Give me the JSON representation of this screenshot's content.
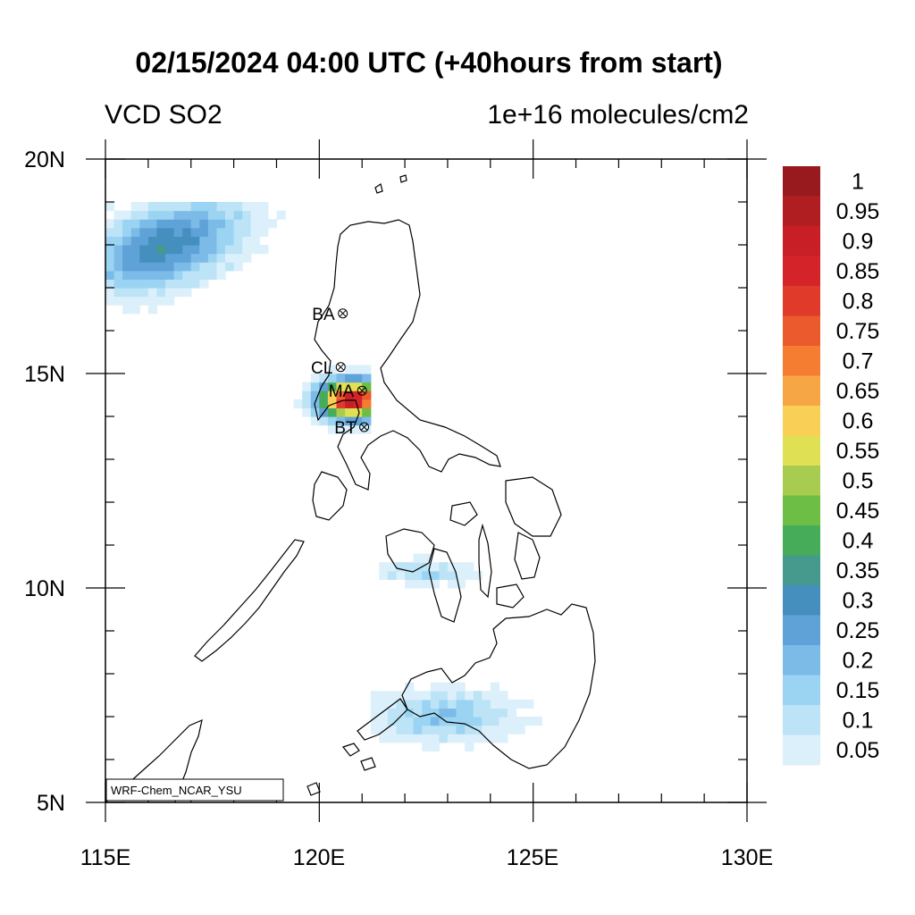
{
  "header": {
    "title": "02/15/2024 04:00 UTC (+40hours from start)",
    "left_subtitle": "VCD SO2",
    "right_subtitle": "1e+16 molecules/cm2"
  },
  "axes": {
    "x_ticks": [
      "115E",
      "120E",
      "125E",
      "130E"
    ],
    "y_ticks": [
      "20N",
      "15N",
      "10N",
      "5N"
    ],
    "lon_range": [
      115,
      130
    ],
    "lat_range": [
      5,
      20
    ]
  },
  "sites": [
    {
      "code": "BA",
      "lon": 120.55,
      "lat": 16.4
    },
    {
      "code": "CL",
      "lon": 120.5,
      "lat": 15.15
    },
    {
      "code": "MA",
      "lon": 121.0,
      "lat": 14.6
    },
    {
      "code": "BT",
      "lon": 121.05,
      "lat": 13.75
    }
  ],
  "credit": "WRF-Chem_NCAR_YSU",
  "colorbar": {
    "labels": [
      "1",
      "0.95",
      "0.9",
      "0.85",
      "0.8",
      "0.75",
      "0.7",
      "0.65",
      "0.6",
      "0.55",
      "0.5",
      "0.45",
      "0.4",
      "0.35",
      "0.3",
      "0.25",
      "0.2",
      "0.15",
      "0.1",
      "0.05"
    ],
    "colors": [
      "#981a1e",
      "#b11e22",
      "#c81f26",
      "#d42429",
      "#e03a2b",
      "#ea5a2c",
      "#f47d32",
      "#f7a645",
      "#f9d055",
      "#dfe054",
      "#a8cc4f",
      "#6cbe45",
      "#46ac5a",
      "#45998d",
      "#448fbd",
      "#5fa2d8",
      "#7cbbe8",
      "#9ad4f2",
      "#bce3f6",
      "#dcf0fb"
    ]
  },
  "chart_data": {
    "type": "heatmap",
    "variable": "VCD SO2",
    "units": "1e+16 molecules/cm2",
    "levels": [
      0.05,
      0.1,
      0.15,
      0.2,
      0.25,
      0.3,
      0.35,
      0.4,
      0.45,
      0.5,
      0.55,
      0.6,
      0.65,
      0.7,
      0.75,
      0.8,
      0.85,
      0.9,
      0.95,
      1
    ],
    "xlim": [
      115,
      130
    ],
    "ylim": [
      5,
      20
    ],
    "plumes": [
      {
        "region": "northwest plume",
        "lon": [
          115.0,
          119.7
        ],
        "lat": [
          15.6,
          19.0
        ],
        "max": 0.35
      },
      {
        "region": "Manila area",
        "lon": [
          119.2,
          121.2
        ],
        "lat": [
          13.6,
          15.2
        ],
        "max": 0.95
      },
      {
        "region": "central Visayas",
        "lon": [
          121.0,
          124.0
        ],
        "lat": [
          9.8,
          10.9
        ],
        "max": 0.15
      },
      {
        "region": "south Mindanao",
        "lon": [
          121.2,
          125.6
        ],
        "lat": [
          5.8,
          8.0
        ],
        "max": 0.2
      }
    ]
  }
}
